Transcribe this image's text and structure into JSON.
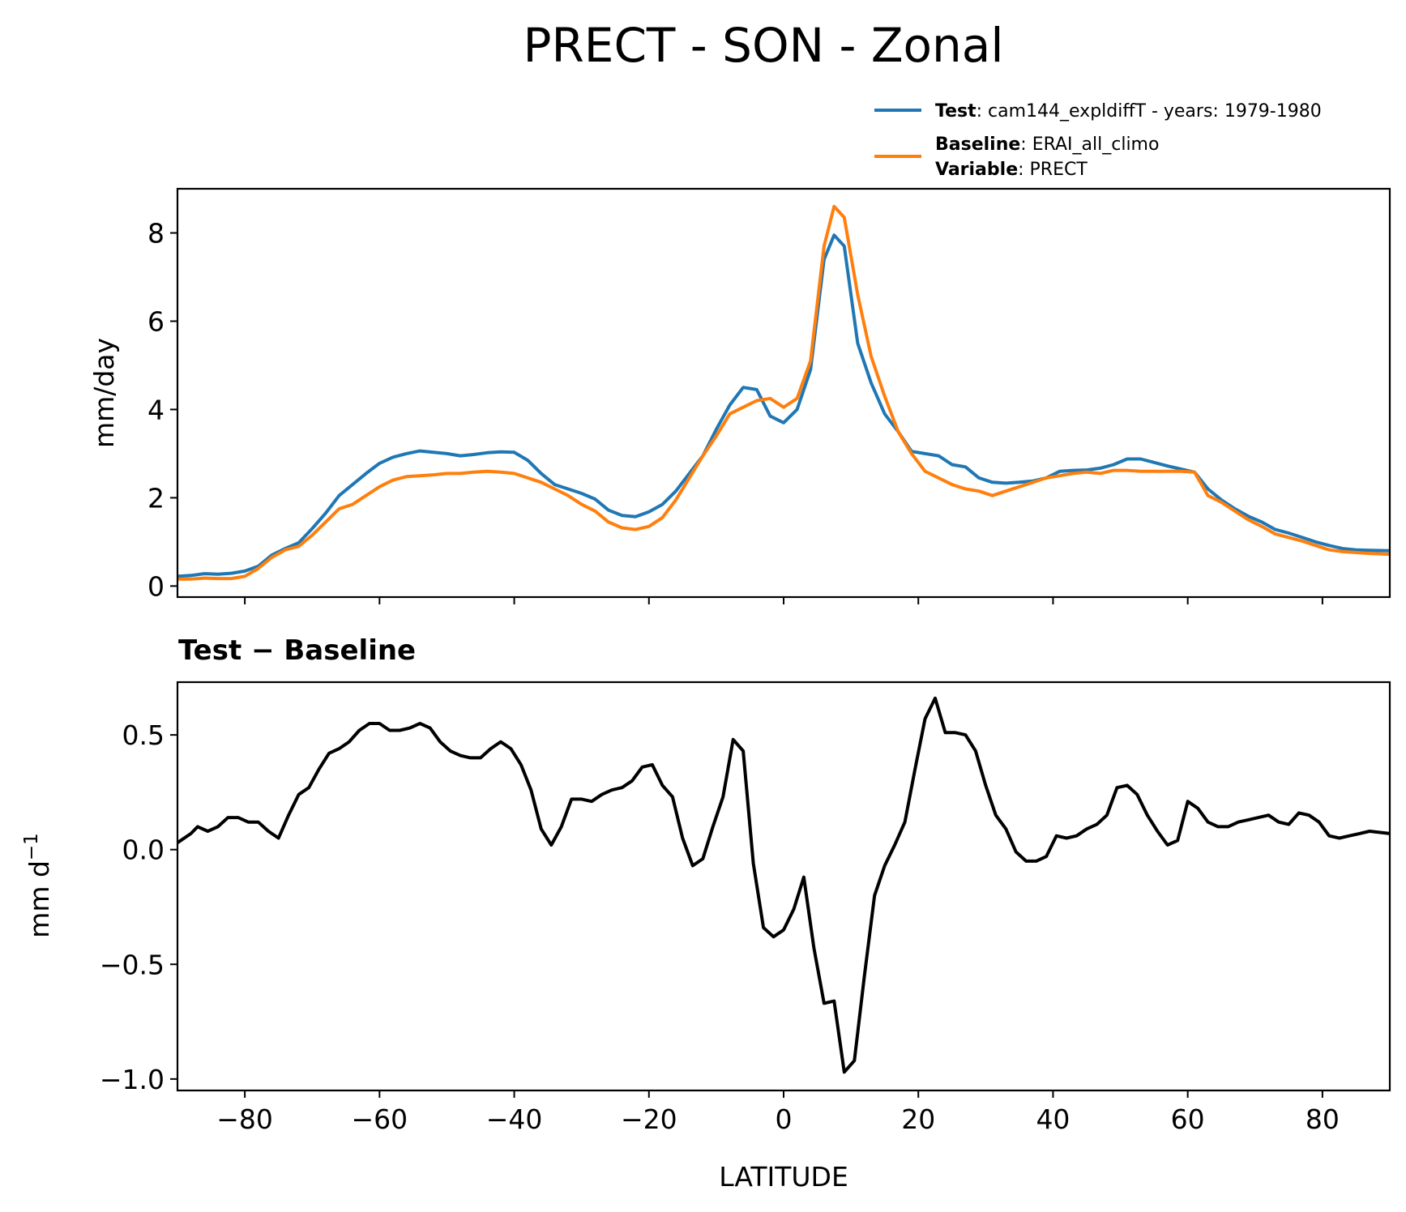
{
  "figure_title": "PRECT - SON - Zonal",
  "legend": {
    "test_label": "Test",
    "test_text": ": cam144_expldiffT - years: 1979-1980",
    "baseline_label": "Baseline",
    "baseline_text": ": ERAI_all_climo",
    "variable_label": "Variable",
    "variable_text": ": PRECT"
  },
  "colors": {
    "test": "#1f77b4",
    "baseline": "#ff7f0e",
    "diff": "#000000"
  },
  "chart_data": [
    {
      "type": "line",
      "name": "top-panel",
      "title": "",
      "xlabel": "",
      "ylabel": "mm/day",
      "xlim": [
        -90,
        90
      ],
      "ylim": [
        -0.25,
        9.0
      ],
      "yticks": [
        0,
        2,
        4,
        6,
        8
      ],
      "ytick_labels": [
        "0",
        "2",
        "4",
        "6",
        "8"
      ],
      "xticks": [
        -80,
        -60,
        -40,
        -20,
        0,
        20,
        40,
        60,
        80
      ],
      "series": [
        {
          "name": "Test",
          "x": [
            -90,
            -88,
            -86,
            -84,
            -82,
            -80,
            -78,
            -76,
            -74,
            -72,
            -70,
            -68,
            -66,
            -64,
            -62,
            -60,
            -58,
            -56,
            -54,
            -52,
            -50,
            -48,
            -46,
            -44,
            -42,
            -40,
            -38,
            -36,
            -34,
            -32,
            -30,
            -28,
            -26,
            -24,
            -22,
            -20,
            -18,
            -16,
            -14,
            -12,
            -10,
            -8,
            -6,
            -4,
            -2,
            0,
            2,
            4,
            6,
            7.5,
            9,
            11,
            13,
            15,
            17,
            19,
            21,
            23,
            25,
            27,
            29,
            31,
            33,
            35,
            37,
            39,
            41,
            43,
            45,
            47,
            49,
            51,
            53,
            55,
            57,
            59,
            61,
            63,
            65,
            67,
            69,
            71,
            73,
            75,
            77,
            79,
            81,
            83,
            85,
            87,
            90
          ],
          "values": [
            0.22,
            0.24,
            0.28,
            0.27,
            0.29,
            0.34,
            0.45,
            0.7,
            0.85,
            0.98,
            1.3,
            1.65,
            2.05,
            2.3,
            2.55,
            2.78,
            2.92,
            3.0,
            3.06,
            3.03,
            3.0,
            2.95,
            2.98,
            3.02,
            3.04,
            3.03,
            2.85,
            2.55,
            2.3,
            2.2,
            2.1,
            1.97,
            1.72,
            1.6,
            1.57,
            1.68,
            1.85,
            2.15,
            2.55,
            2.95,
            3.55,
            4.1,
            4.5,
            4.45,
            3.85,
            3.7,
            4.0,
            4.9,
            7.4,
            7.95,
            7.7,
            5.5,
            4.6,
            3.9,
            3.5,
            3.05,
            3.0,
            2.95,
            2.75,
            2.7,
            2.45,
            2.35,
            2.33,
            2.35,
            2.38,
            2.45,
            2.6,
            2.62,
            2.63,
            2.67,
            2.75,
            2.88,
            2.88,
            2.8,
            2.72,
            2.65,
            2.58,
            2.2,
            1.95,
            1.75,
            1.58,
            1.45,
            1.28,
            1.2,
            1.1,
            1.0,
            0.92,
            0.85,
            0.82,
            0.81,
            0.8
          ]
        },
        {
          "name": "Baseline",
          "x": [
            -90,
            -88,
            -86,
            -84,
            -82,
            -80,
            -78,
            -76,
            -74,
            -72,
            -70,
            -68,
            -66,
            -64,
            -62,
            -60,
            -58,
            -56,
            -54,
            -52,
            -50,
            -48,
            -46,
            -44,
            -42,
            -40,
            -38,
            -36,
            -34,
            -32,
            -30,
            -28,
            -26,
            -24,
            -22,
            -20,
            -18,
            -16,
            -14,
            -12,
            -10,
            -8,
            -6,
            -4,
            -2,
            0,
            2,
            4,
            6,
            7.5,
            9,
            11,
            13,
            15,
            17,
            19,
            21,
            23,
            25,
            27,
            29,
            31,
            33,
            35,
            37,
            39,
            41,
            43,
            45,
            47,
            49,
            51,
            53,
            55,
            57,
            59,
            61,
            63,
            65,
            67,
            69,
            71,
            73,
            75,
            77,
            79,
            81,
            83,
            85,
            87,
            90
          ],
          "values": [
            0.16,
            0.16,
            0.18,
            0.17,
            0.17,
            0.22,
            0.4,
            0.65,
            0.82,
            0.9,
            1.15,
            1.45,
            1.75,
            1.85,
            2.05,
            2.25,
            2.4,
            2.48,
            2.5,
            2.52,
            2.55,
            2.55,
            2.58,
            2.6,
            2.58,
            2.55,
            2.45,
            2.35,
            2.2,
            2.05,
            1.85,
            1.7,
            1.45,
            1.32,
            1.28,
            1.35,
            1.55,
            1.95,
            2.45,
            2.95,
            3.4,
            3.9,
            4.05,
            4.2,
            4.25,
            4.05,
            4.25,
            5.1,
            7.7,
            8.6,
            8.35,
            6.6,
            5.2,
            4.3,
            3.5,
            3.0,
            2.6,
            2.45,
            2.3,
            2.2,
            2.15,
            2.05,
            2.15,
            2.25,
            2.35,
            2.45,
            2.5,
            2.55,
            2.58,
            2.55,
            2.62,
            2.62,
            2.6,
            2.6,
            2.6,
            2.6,
            2.58,
            2.05,
            1.9,
            1.7,
            1.5,
            1.35,
            1.18,
            1.1,
            1.02,
            0.92,
            0.82,
            0.78,
            0.76,
            0.74,
            0.72
          ]
        }
      ]
    },
    {
      "type": "line",
      "name": "bottom-panel",
      "title": "Test − Baseline",
      "xlabel": "LATITUDE",
      "ylabel_main": "mm d",
      "ylabel_sup": "−1",
      "xlim": [
        -90,
        90
      ],
      "ylim": [
        -1.05,
        0.73
      ],
      "yticks": [
        -1.0,
        -0.5,
        0.0,
        0.5
      ],
      "ytick_labels": [
        "−1.0",
        "−0.5",
        "0.0",
        "0.5"
      ],
      "xticks": [
        -80,
        -60,
        -40,
        -20,
        0,
        20,
        40,
        60,
        80
      ],
      "xtick_labels": [
        "−80",
        "−60",
        "−40",
        "−20",
        "0",
        "20",
        "40",
        "60",
        "80"
      ],
      "series": [
        {
          "name": "Test - Baseline",
          "x": [
            -90,
            -88,
            -87,
            -85.5,
            -84,
            -82.5,
            -81,
            -79.5,
            -78,
            -76.5,
            -75,
            -73.5,
            -72,
            -70.5,
            -69,
            -67.5,
            -66,
            -64.5,
            -63,
            -61.5,
            -60,
            -58.5,
            -57,
            -55.5,
            -54,
            -52.5,
            -51,
            -49.5,
            -48,
            -46.5,
            -45,
            -43.5,
            -42,
            -40.5,
            -39,
            -37.5,
            -36,
            -34.5,
            -33,
            -31.5,
            -30,
            -28.5,
            -27,
            -25.5,
            -24,
            -22.5,
            -21,
            -19.5,
            -18,
            -16.5,
            -15,
            -13.5,
            -12,
            -10.5,
            -9,
            -7.5,
            -6,
            -4.5,
            -3,
            -1.5,
            0,
            1.5,
            3,
            4.5,
            6,
            7.5,
            9,
            10.5,
            12,
            13.5,
            15,
            16.5,
            18,
            19.5,
            21,
            22.5,
            24,
            25.5,
            27,
            28.5,
            30,
            31.5,
            33,
            34.5,
            36,
            37.5,
            39,
            40.5,
            42,
            43.5,
            45,
            46.5,
            48,
            49.5,
            51,
            52.5,
            54,
            55.5,
            57,
            58.5,
            60,
            61.5,
            63,
            64.5,
            66,
            67.5,
            69,
            70.5,
            72,
            73.5,
            75,
            76.5,
            78,
            79.5,
            81,
            82.5,
            84,
            85.5,
            87,
            90
          ],
          "values": [
            0.03,
            0.07,
            0.1,
            0.08,
            0.1,
            0.14,
            0.14,
            0.12,
            0.12,
            0.08,
            0.05,
            0.15,
            0.24,
            0.27,
            0.35,
            0.42,
            0.44,
            0.47,
            0.52,
            0.55,
            0.55,
            0.52,
            0.52,
            0.53,
            0.55,
            0.53,
            0.47,
            0.43,
            0.41,
            0.4,
            0.4,
            0.44,
            0.47,
            0.44,
            0.37,
            0.26,
            0.09,
            0.02,
            0.1,
            0.22,
            0.22,
            0.21,
            0.24,
            0.26,
            0.27,
            0.3,
            0.36,
            0.37,
            0.28,
            0.23,
            0.05,
            -0.07,
            -0.04,
            0.1,
            0.23,
            0.48,
            0.43,
            -0.06,
            -0.34,
            -0.38,
            -0.35,
            -0.26,
            -0.12,
            -0.43,
            -0.67,
            -0.66,
            -0.97,
            -0.92,
            -0.55,
            -0.2,
            -0.07,
            0.02,
            0.12,
            0.35,
            0.57,
            0.66,
            0.51,
            0.51,
            0.5,
            0.43,
            0.28,
            0.15,
            0.09,
            -0.01,
            -0.05,
            -0.05,
            -0.03,
            0.06,
            0.05,
            0.06,
            0.09,
            0.11,
            0.15,
            0.27,
            0.28,
            0.24,
            0.15,
            0.08,
            0.02,
            0.04,
            0.21,
            0.18,
            0.12,
            0.1,
            0.1,
            0.12,
            0.13,
            0.14,
            0.15,
            0.12,
            0.11,
            0.16,
            0.15,
            0.12,
            0.06,
            0.05,
            0.06,
            0.07,
            0.08,
            0.07
          ]
        }
      ]
    }
  ]
}
